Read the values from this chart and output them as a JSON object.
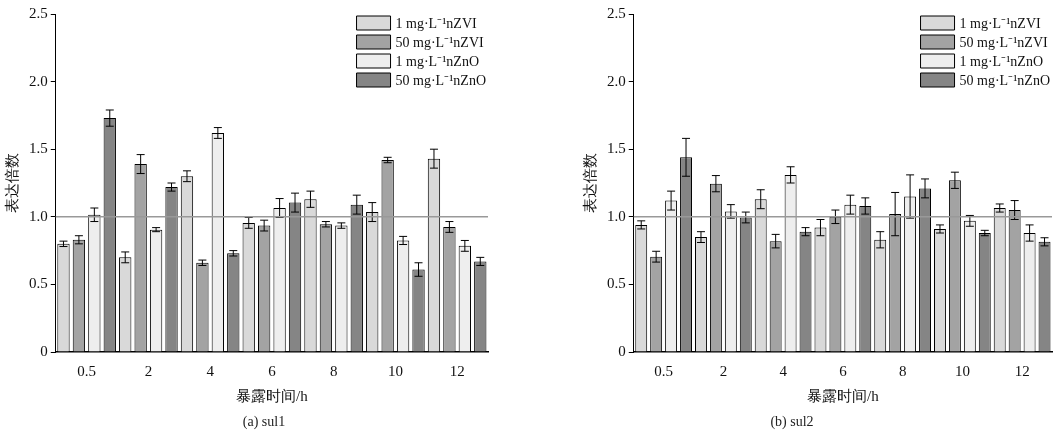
{
  "chart_data": [
    {
      "type": "bar",
      "title": "(a) sul1",
      "xlabel": "暴露时间/h",
      "ylabel": "表达倍数",
      "categories": [
        "0.5",
        "2",
        "4",
        "6",
        "8",
        "10",
        "12"
      ],
      "series": [
        {
          "name": "1 mg·L⁻¹nZVI",
          "color": "#d9d9d9",
          "values": [
            0.8,
            0.7,
            1.3,
            0.955,
            1.13,
            1.035,
            1.43
          ],
          "errors": [
            0.02,
            0.04,
            0.04,
            0.04,
            0.06,
            0.07,
            0.07
          ]
        },
        {
          "name": "50 mg·L⁻¹nZVI",
          "color": "#a3a3a3",
          "values": [
            0.83,
            1.39,
            0.66,
            0.935,
            0.945,
            1.42,
            0.925
          ],
          "errors": [
            0.03,
            0.07,
            0.02,
            0.04,
            0.02,
            0.02,
            0.04
          ]
        },
        {
          "name": "1 mg·L⁻¹nZnO",
          "color": "#eeeeee",
          "values": [
            1.015,
            0.905,
            1.62,
            1.065,
            0.935,
            0.825,
            0.785
          ],
          "errors": [
            0.05,
            0.015,
            0.04,
            0.07,
            0.02,
            0.03,
            0.04
          ]
        },
        {
          "name": "50 mg·L⁻¹nZnO",
          "color": "#858585",
          "values": [
            1.73,
            1.22,
            0.73,
            1.105,
            1.09,
            0.61,
            0.67
          ],
          "errors": [
            0.06,
            0.03,
            0.02,
            0.07,
            0.07,
            0.05,
            0.03
          ]
        }
      ],
      "ylim": [
        0,
        2.5
      ],
      "yticks": [
        0,
        {
          "value": 0.5,
          "label": "0.5"
        },
        {
          "value": 1,
          "label": "1.0"
        },
        {
          "value": 1.5,
          "label": "1.5"
        },
        {
          "value": 2,
          "label": "2.0"
        },
        {
          "value": 2.5,
          "label": "2.5"
        }
      ],
      "ref_lines": [
        {
          "axis": "y",
          "value": 1,
          "color": "#999999"
        }
      ],
      "legend": "top right",
      "grid": false
    },
    {
      "type": "bar",
      "title": "(b) sul2",
      "xlabel": "暴露时间/h",
      "ylabel": "表达倍数",
      "categories": [
        "0.5",
        "2",
        "4",
        "6",
        "8",
        "10",
        "12"
      ],
      "series": [
        {
          "name": "1 mg·L⁻¹nZVI",
          "color": "#d9d9d9",
          "values": [
            0.94,
            0.85,
            1.13,
            0.92,
            0.83,
            0.91,
            1.065
          ],
          "errors": [
            0.03,
            0.04,
            0.07,
            0.06,
            0.06,
            0.03,
            0.03
          ]
        },
        {
          "name": "50 mg·L⁻¹nZVI",
          "color": "#a3a3a3",
          "values": [
            0.705,
            1.245,
            0.82,
            1.0,
            1.02,
            1.27,
            1.05
          ],
          "errors": [
            0.04,
            0.06,
            0.05,
            0.05,
            0.16,
            0.06,
            0.07
          ]
        },
        {
          "name": "1 mg·L⁻¹nZnO",
          "color": "#eeeeee",
          "values": [
            1.12,
            1.04,
            1.31,
            1.09,
            1.15,
            0.97,
            0.88
          ],
          "errors": [
            0.07,
            0.05,
            0.06,
            0.07,
            0.16,
            0.04,
            0.06
          ]
        },
        {
          "name": "50 mg·L⁻¹nZnO",
          "color": "#858585",
          "values": [
            1.44,
            0.995,
            0.89,
            1.08,
            1.21,
            0.88,
            0.815
          ],
          "errors": [
            0.14,
            0.04,
            0.03,
            0.06,
            0.07,
            0.02,
            0.03
          ]
        }
      ],
      "ylim": [
        0,
        2.5
      ],
      "yticks": [
        0,
        {
          "value": 0.5,
          "label": "0.5"
        },
        {
          "value": 1,
          "label": "1.0"
        },
        {
          "value": 1.5,
          "label": "1.5"
        },
        {
          "value": 2,
          "label": "2.0"
        },
        {
          "value": 2.5,
          "label": "2.5"
        }
      ],
      "ref_lines": [
        {
          "axis": "y",
          "value": 1,
          "color": "#999999"
        }
      ],
      "legend": "top right",
      "grid": false
    }
  ]
}
